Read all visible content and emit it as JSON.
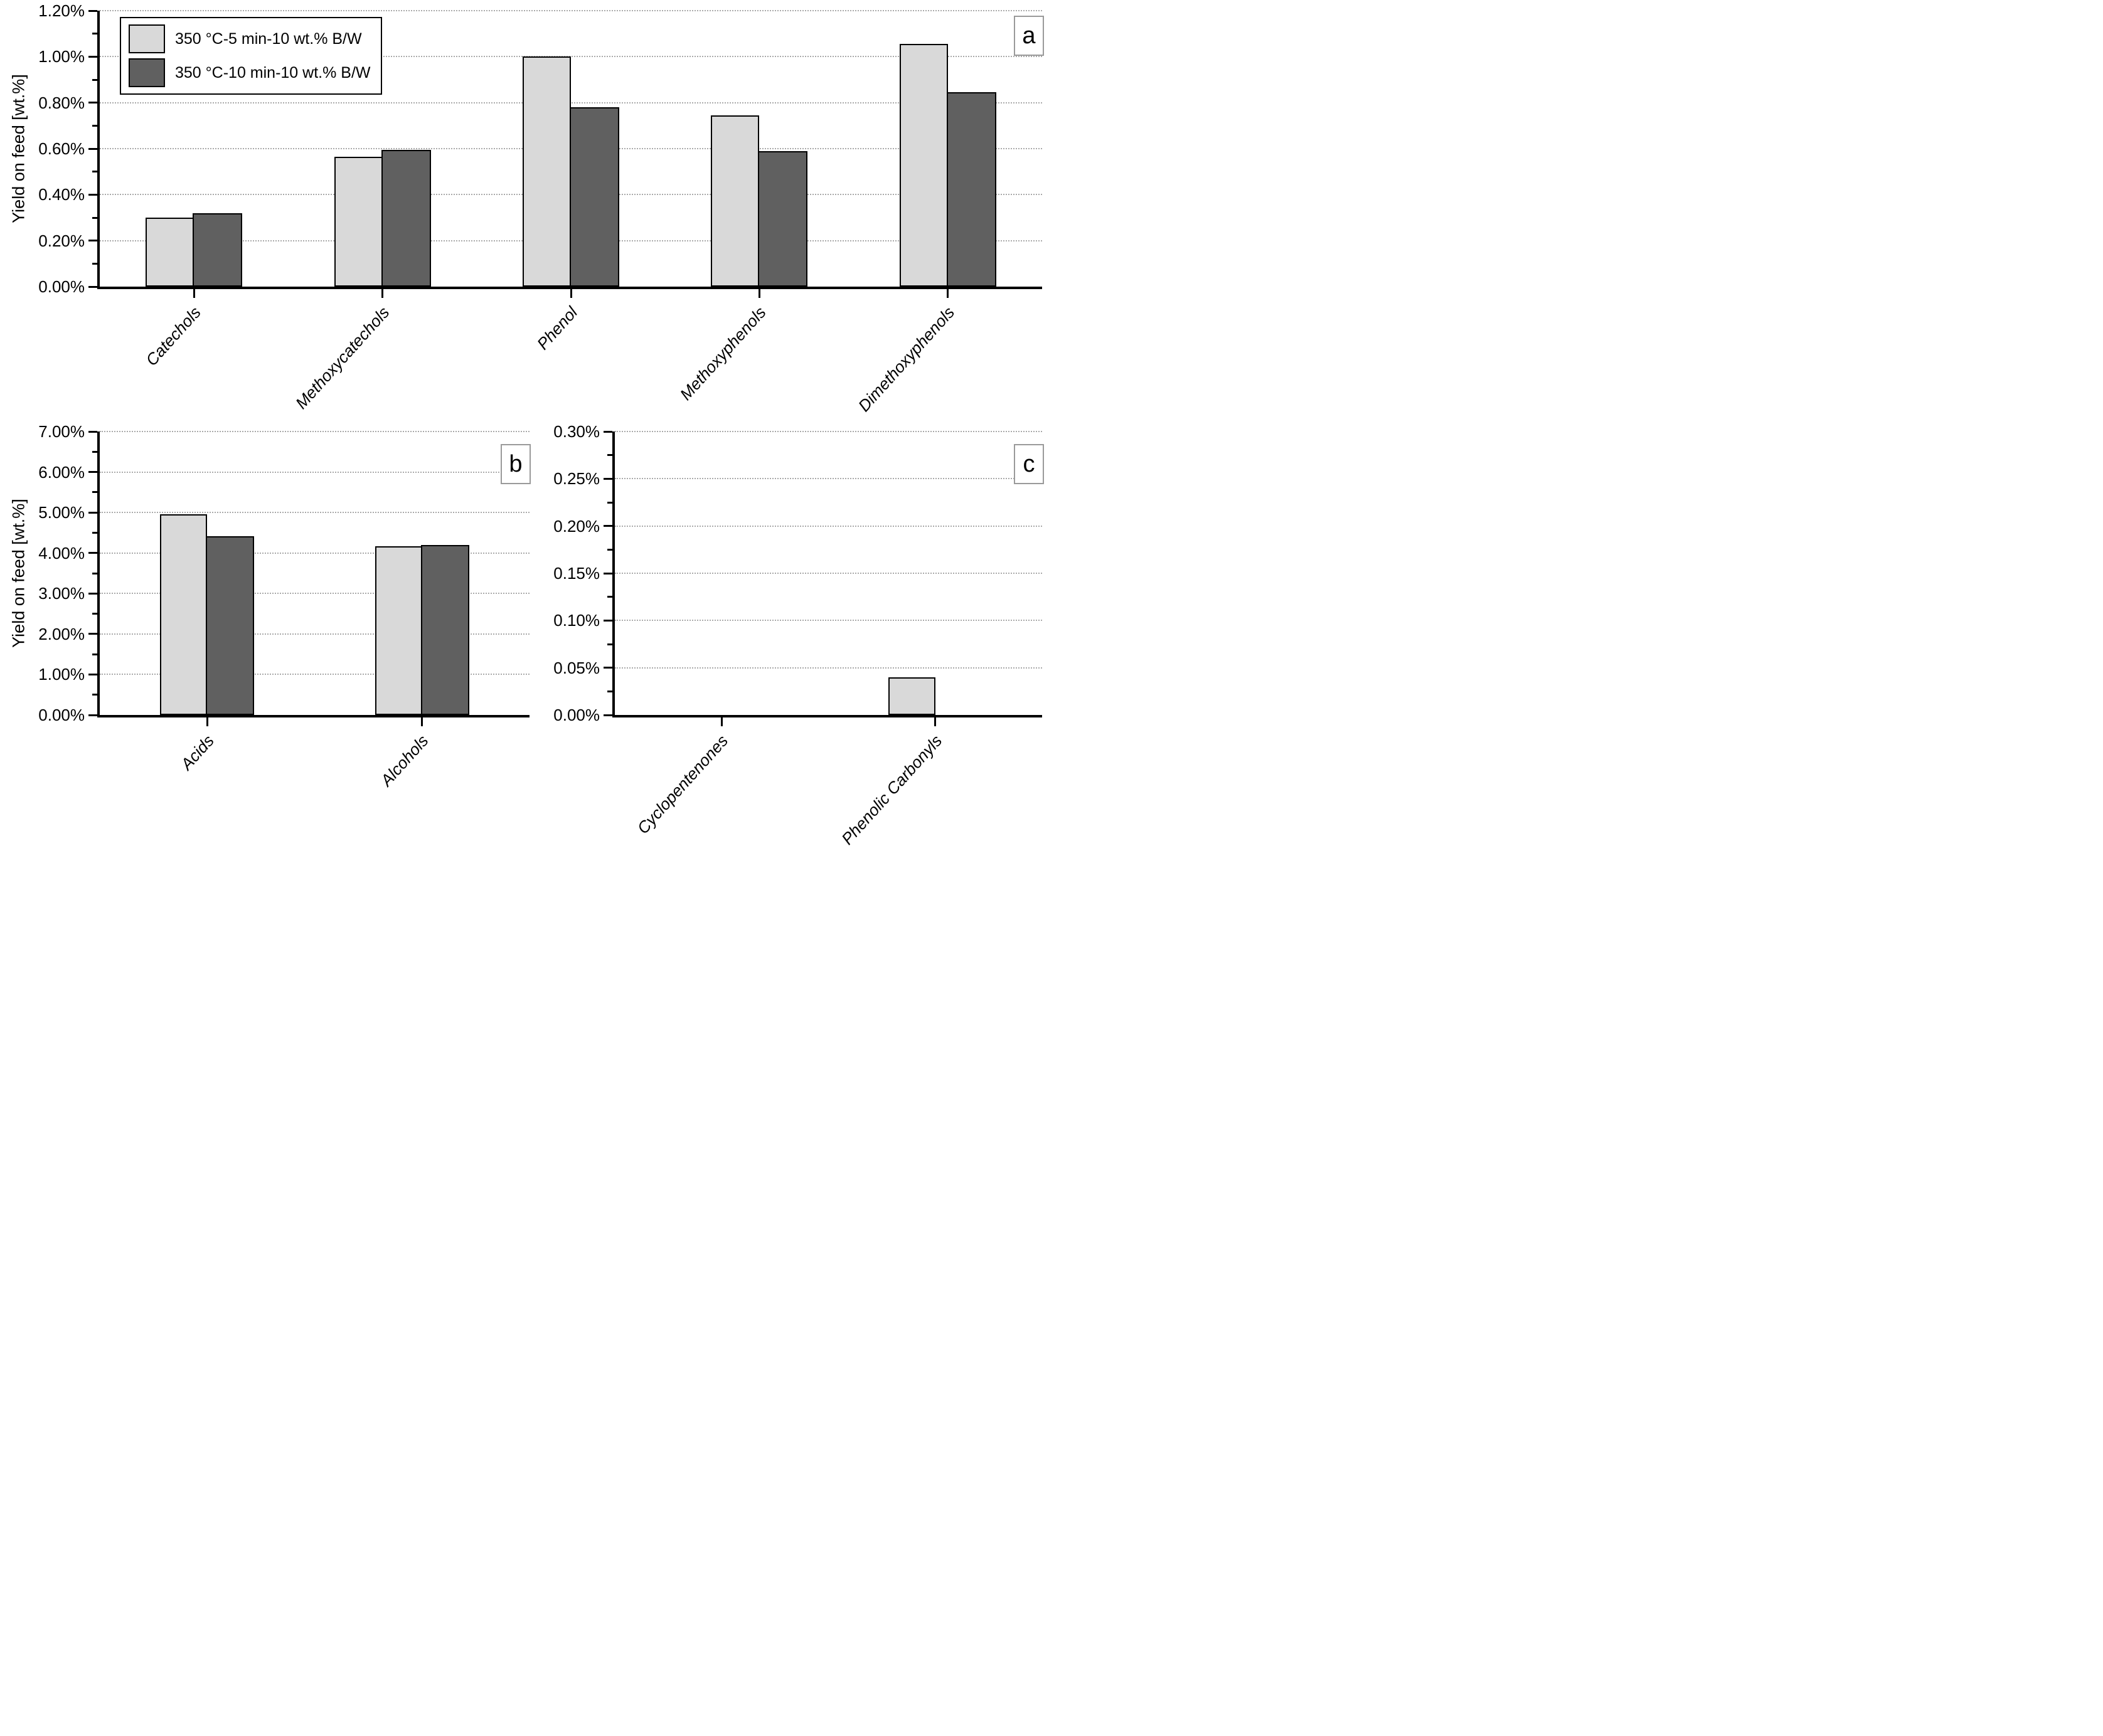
{
  "figure": {
    "legend": {
      "items": [
        {
          "label": "350 °C-5 min-10 wt.% B/W",
          "color": "#d9d9d9"
        },
        {
          "label": "350 °C-10 min-10 wt.% B/W",
          "color": "#606060"
        }
      ]
    },
    "colors": {
      "bar_outline": "#000000",
      "gridline": "#a9a9a9",
      "axis": "#000000"
    }
  },
  "chart_data": [
    {
      "panel": "a",
      "type": "bar",
      "title": "",
      "xlabel": "",
      "ylabel": "Yield on feed [wt.%]",
      "categories": [
        "Catechols",
        "Methoxycatechols",
        "Phenol",
        "Methoxyphenols",
        "Dimethoxyphenols"
      ],
      "series": [
        {
          "name": "350 °C-5 min-10 wt.% B/W",
          "color": "#d9d9d9",
          "values": [
            0.3,
            0.565,
            1.0,
            0.745,
            1.055
          ]
        },
        {
          "name": "350 °C-10 min-10 wt.% B/W",
          "color": "#606060",
          "values": [
            0.32,
            0.595,
            0.78,
            0.59,
            0.845
          ]
        }
      ],
      "ylim": [
        0,
        1.2
      ],
      "ytick_step": 0.2,
      "minor_step": 0.1,
      "ytick_labels": [
        "0.00%",
        "0.20%",
        "0.40%",
        "0.60%",
        "0.80%",
        "1.00%",
        "1.20%"
      ],
      "grid": true,
      "legend_position": "top-left"
    },
    {
      "panel": "b",
      "type": "bar",
      "title": "",
      "xlabel": "",
      "ylabel": "Yield on feed [wt.%]",
      "categories": [
        "Acids",
        "Alcohols"
      ],
      "series": [
        {
          "name": "350 °C-5 min-10 wt.% B/W",
          "color": "#d9d9d9",
          "values": [
            4.95,
            4.17
          ]
        },
        {
          "name": "350 °C-10 min-10 wt.% B/W",
          "color": "#606060",
          "values": [
            4.42,
            4.2
          ]
        }
      ],
      "ylim": [
        0,
        7
      ],
      "ytick_step": 1.0,
      "minor_step": 0.5,
      "ytick_labels": [
        "0.00%",
        "1.00%",
        "2.00%",
        "3.00%",
        "4.00%",
        "5.00%",
        "6.00%",
        "7.00%"
      ],
      "grid": true,
      "legend_position": "none"
    },
    {
      "panel": "c",
      "type": "bar",
      "title": "",
      "xlabel": "",
      "ylabel": "",
      "categories": [
        "Cyclopentenones",
        "Phenolic Carbonyls"
      ],
      "series": [
        {
          "name": "350 °C-5 min-10 wt.% B/W",
          "color": "#d9d9d9",
          "values": [
            0,
            0.04
          ]
        },
        {
          "name": "350 °C-10 min-10 wt.% B/W",
          "color": "#606060",
          "values": [
            0,
            0
          ]
        }
      ],
      "ylim": [
        0,
        0.3
      ],
      "ytick_step": 0.05,
      "minor_step": 0.025,
      "ytick_labels": [
        "0.00%",
        "0.05%",
        "0.10%",
        "0.15%",
        "0.20%",
        "0.25%",
        "0.30%"
      ],
      "grid": true,
      "legend_position": "none"
    }
  ]
}
